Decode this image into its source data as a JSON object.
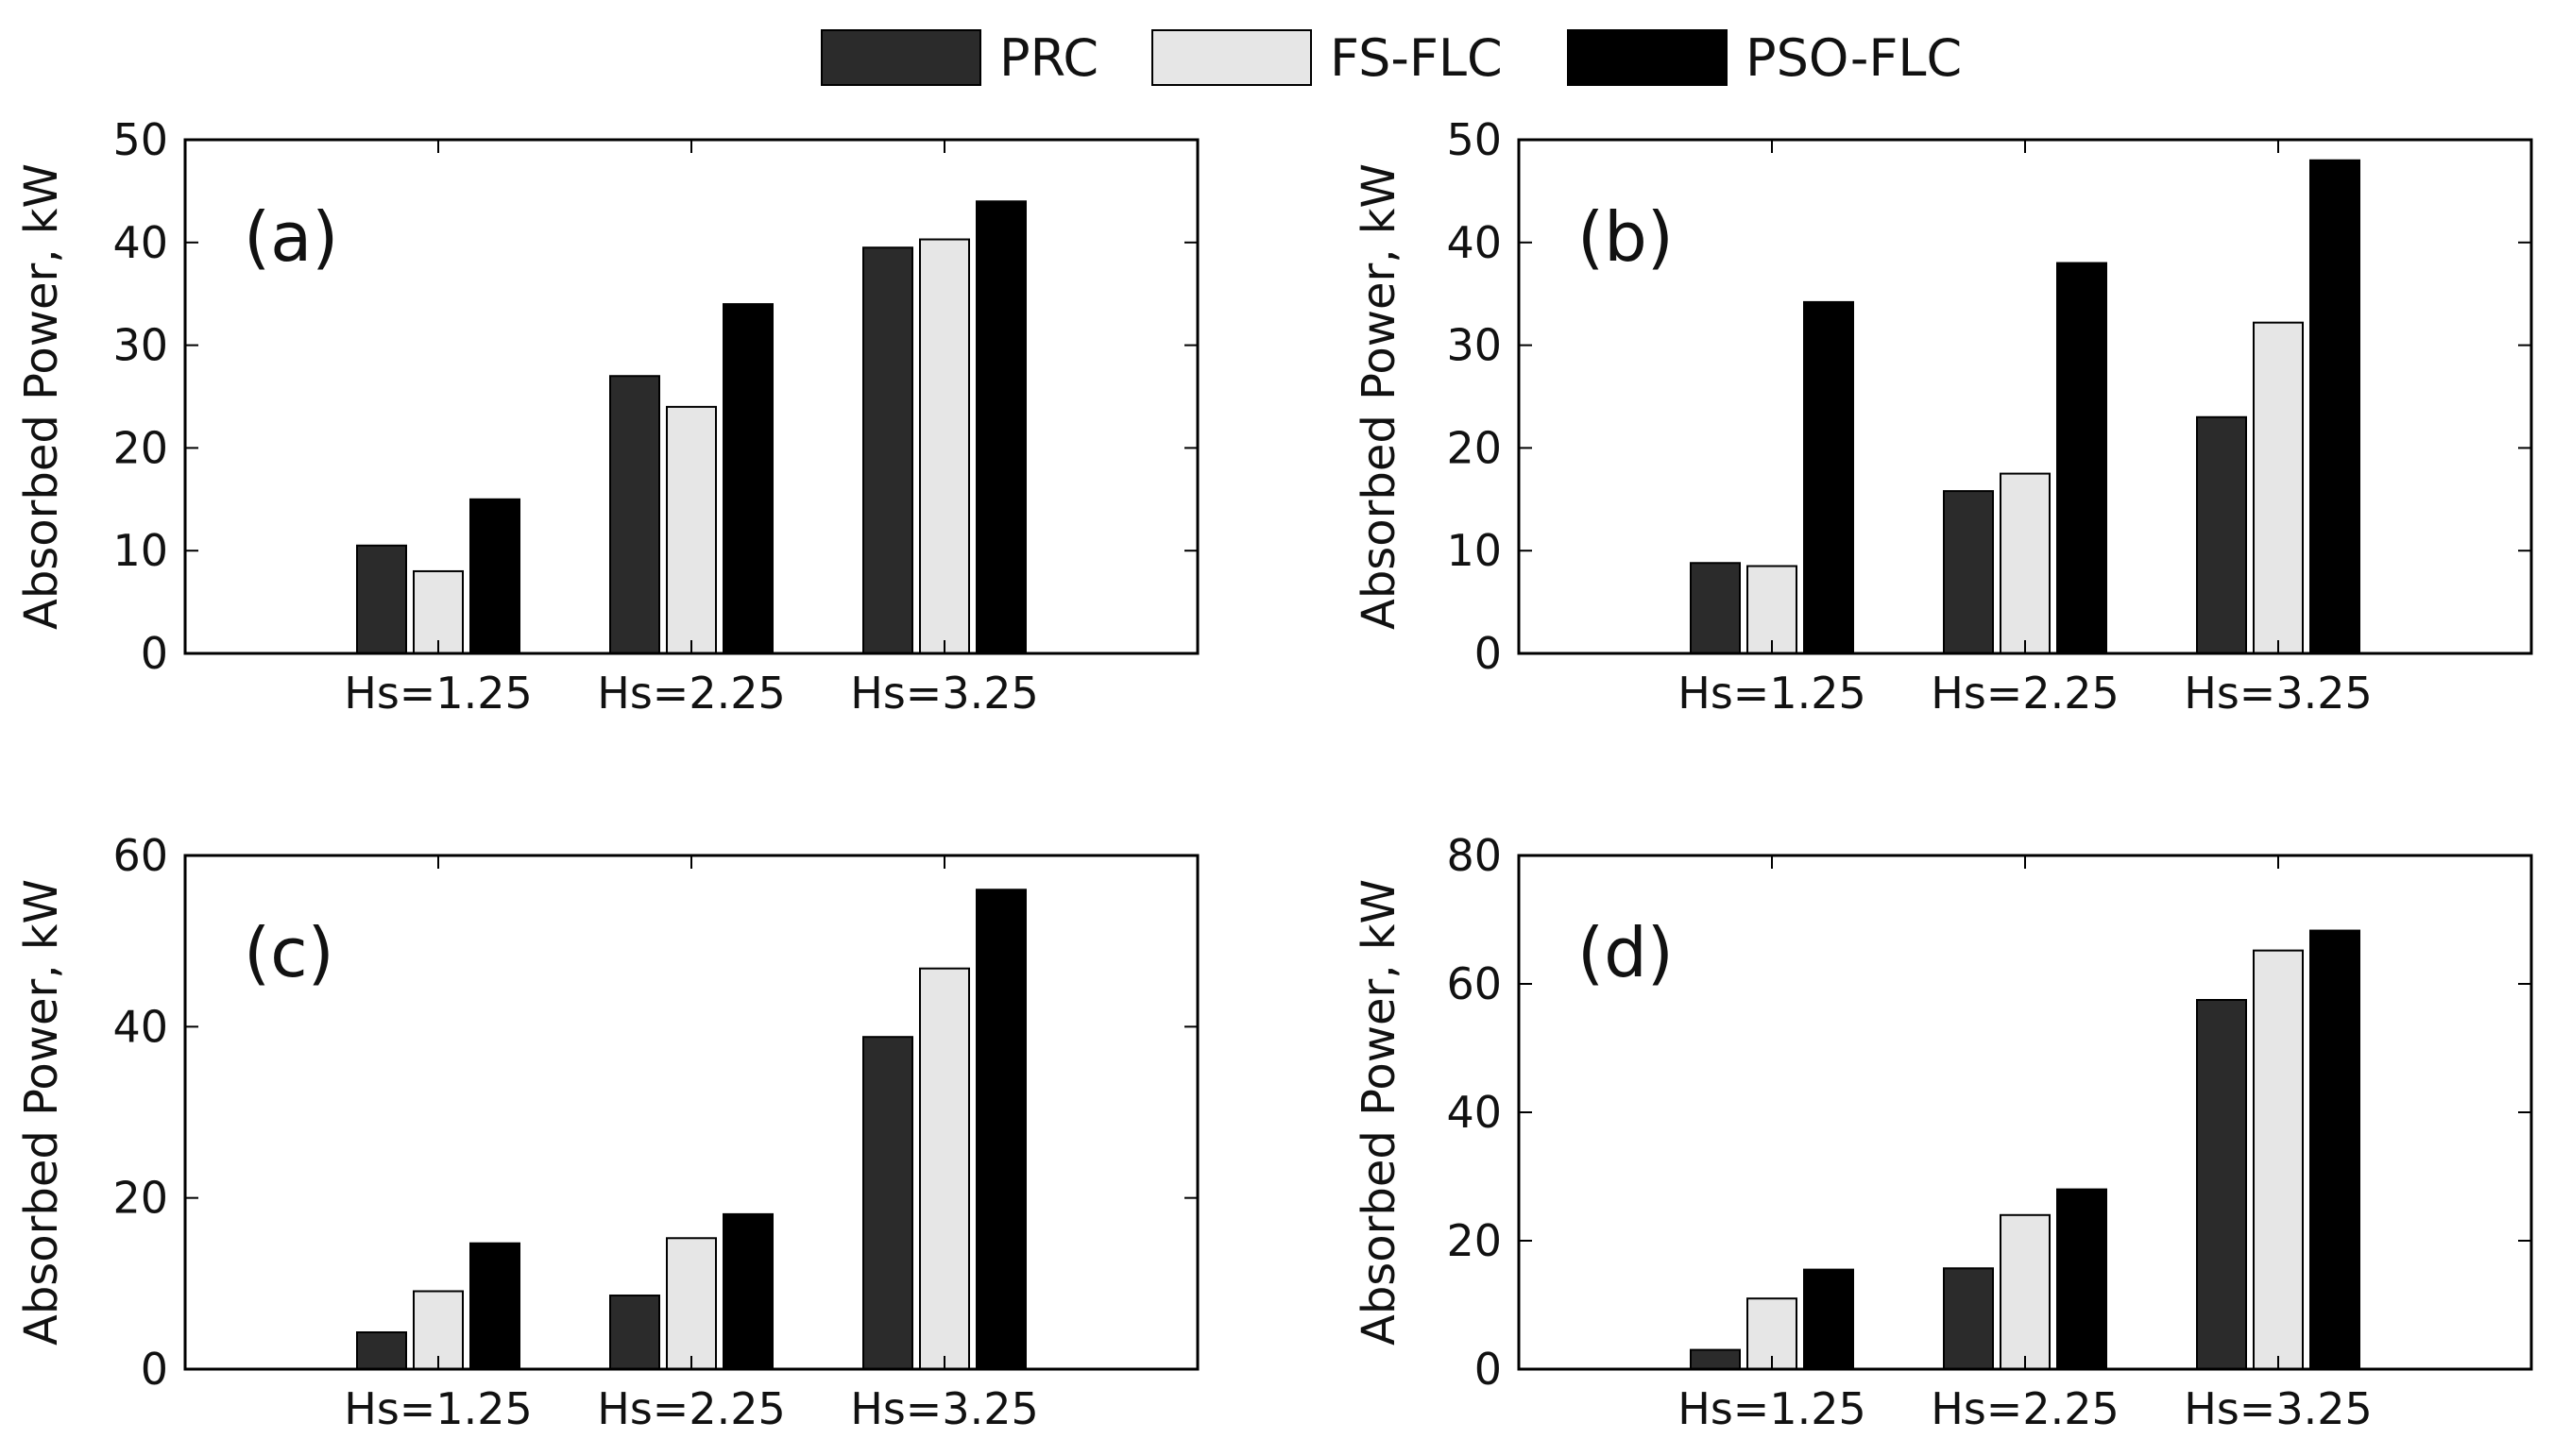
{
  "legend": [
    {
      "name": "PRC",
      "color": "#2b2b2b"
    },
    {
      "name": "FS-FLC",
      "color": "#e6e6e6"
    },
    {
      "name": "PSO-FLC",
      "color": "#000000"
    }
  ],
  "chart_data": [
    {
      "type": "bar",
      "panel": "(a)",
      "categories": [
        "Hs=1.25",
        "Hs=2.25",
        "Hs=3.25"
      ],
      "series": [
        {
          "name": "PRC",
          "values": [
            10.5,
            27,
            39.5
          ]
        },
        {
          "name": "FS-FLC",
          "values": [
            8,
            24,
            40.3
          ]
        },
        {
          "name": "PSO-FLC",
          "values": [
            15,
            34,
            44
          ]
        }
      ],
      "ylabel": "Absorbed Power, kW",
      "ylim": [
        0,
        50
      ],
      "yticks": [
        0,
        10,
        20,
        30,
        40,
        50
      ]
    },
    {
      "type": "bar",
      "panel": "(b)",
      "categories": [
        "Hs=1.25",
        "Hs=2.25",
        "Hs=3.25"
      ],
      "series": [
        {
          "name": "PRC",
          "values": [
            8.8,
            15.8,
            23
          ]
        },
        {
          "name": "FS-FLC",
          "values": [
            8.5,
            17.5,
            32.2
          ]
        },
        {
          "name": "PSO-FLC",
          "values": [
            34.2,
            38,
            48
          ]
        }
      ],
      "ylabel": "Absorbed Power, kW",
      "ylim": [
        0,
        50
      ],
      "yticks": [
        0,
        10,
        20,
        30,
        40,
        50
      ]
    },
    {
      "type": "bar",
      "panel": "(c)",
      "categories": [
        "Hs=1.25",
        "Hs=2.25",
        "Hs=3.25"
      ],
      "series": [
        {
          "name": "PRC",
          "values": [
            4.3,
            8.6,
            38.8
          ]
        },
        {
          "name": "FS-FLC",
          "values": [
            9.1,
            15.3,
            46.8
          ]
        },
        {
          "name": "PSO-FLC",
          "values": [
            14.7,
            18.1,
            56
          ]
        }
      ],
      "ylabel": "Absorbed Power, kW",
      "ylim": [
        0,
        60
      ],
      "yticks": [
        0,
        20,
        40,
        60
      ]
    },
    {
      "type": "bar",
      "panel": "(d)",
      "categories": [
        "Hs=1.25",
        "Hs=2.25",
        "Hs=3.25"
      ],
      "series": [
        {
          "name": "PRC",
          "values": [
            3,
            15.7,
            57.5
          ]
        },
        {
          "name": "FS-FLC",
          "values": [
            11,
            24,
            65.2
          ]
        },
        {
          "name": "PSO-FLC",
          "values": [
            15.5,
            28,
            68.3
          ]
        }
      ],
      "ylabel": "Absorbed Power, kW",
      "ylim": [
        0,
        80
      ],
      "yticks": [
        0,
        20,
        40,
        60,
        80
      ]
    }
  ]
}
